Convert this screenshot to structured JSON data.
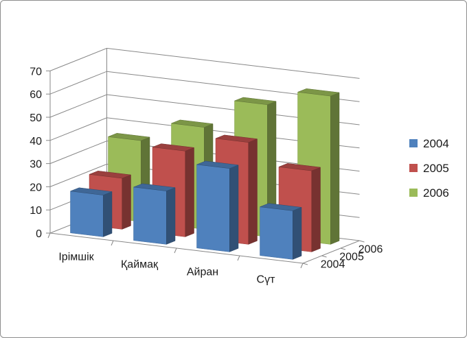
{
  "chart_data": {
    "type": "bar",
    "subtype": "3d-column",
    "categories": [
      "Ірімшік",
      "Қаймақ",
      "Айран",
      "Сүт"
    ],
    "series": [
      {
        "name": "2004",
        "values": [
          18,
          23,
          36,
          21
        ],
        "color": "#4f81bd"
      },
      {
        "name": "2005",
        "values": [
          22,
          37,
          44,
          35
        ],
        "color": "#c0504d"
      },
      {
        "name": "2006",
        "values": [
          35,
          44,
          57,
          64
        ],
        "color": "#9bbb59"
      }
    ],
    "depth_labels": [
      "2004",
      "2005",
      "2006"
    ],
    "ylim": [
      0,
      70
    ],
    "yticks": [
      "0",
      "10",
      "20",
      "30",
      "40",
      "50",
      "60",
      "70"
    ],
    "grid": true,
    "legend": "right"
  }
}
